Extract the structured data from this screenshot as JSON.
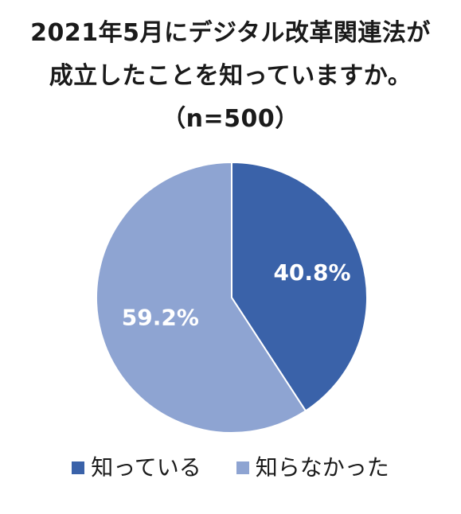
{
  "chart_data": {
    "type": "pie",
    "title_lines": [
      "2021年5月にデジタル改革関連法が",
      "成立したことを知っていますか。"
    ],
    "subtitle": "（n=500）",
    "categories": [
      "知っている",
      "知らなかった"
    ],
    "values": [
      40.8,
      59.2
    ],
    "data_labels": [
      "40.8%",
      "59.2%"
    ],
    "colors": [
      "#3a62a9",
      "#8ea4d2"
    ],
    "legend_position": "bottom"
  }
}
